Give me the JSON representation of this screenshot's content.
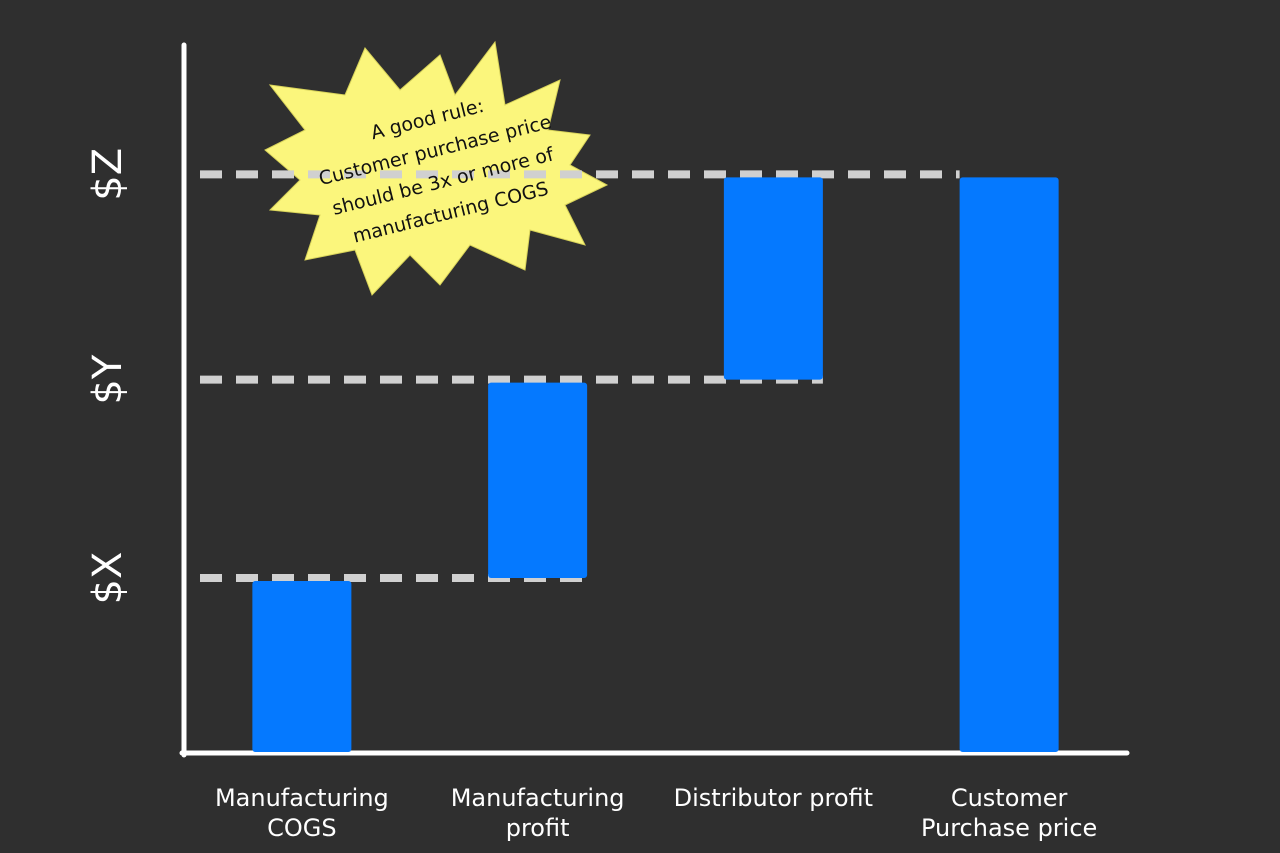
{
  "chart_data": {
    "type": "waterfall",
    "categories": [
      "Manufacturing COGS",
      "Manufacturing profit",
      "Distributor profit",
      "Customer Purchase price"
    ],
    "values": [
      1,
      1.14,
      1.18,
      3.32
    ],
    "totals": [
      false,
      false,
      false,
      true
    ],
    "color": "#0579ff",
    "ylim": [
      0,
      4
    ],
    "yticks": [
      {
        "value": 1,
        "label": "$X"
      },
      {
        "value": 2.14,
        "label": "$Y"
      },
      {
        "value": 3.32,
        "label": "$Z"
      }
    ],
    "grid": true,
    "annotation": [
      "A good rule:",
      "Customer purchase price",
      "should be 3x or more of",
      "manufacturing COGS"
    ]
  }
}
